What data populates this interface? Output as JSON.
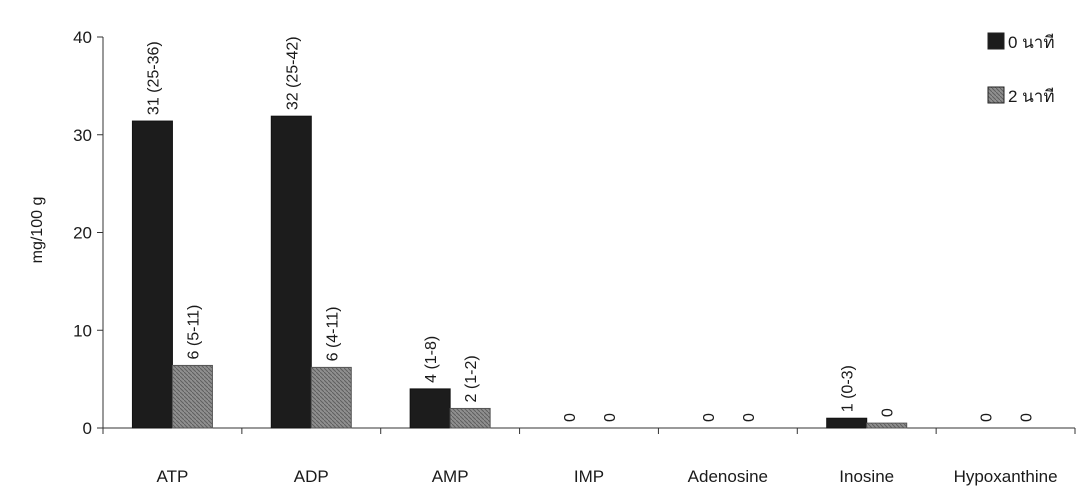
{
  "chart_data": {
    "type": "bar",
    "title": "",
    "xlabel": "",
    "ylabel": "mg/100 g",
    "ylim": [
      0,
      40
    ],
    "yticks": [
      0,
      10,
      20,
      30,
      40
    ],
    "grid": false,
    "legend_position": "top-right",
    "categories": [
      "ATP",
      "ADP",
      "AMP",
      "IMP",
      "Adenosine",
      "Inosine",
      "Hypoxanthine"
    ],
    "series": [
      {
        "name": "0 นาที",
        "color": "#1c1c1c",
        "values": [
          31.4,
          31.9,
          4.0,
          0,
          0,
          1.0,
          0
        ],
        "labels": [
          "31 (25-36)",
          "32 (25-42)",
          "4 (1-8)",
          "0",
          "0",
          "1 (0-3)",
          "0"
        ]
      },
      {
        "name": "2 นาที",
        "color": "#8c8c8c",
        "values": [
          6.4,
          6.2,
          2.0,
          0,
          0,
          0.5,
          0
        ],
        "labels": [
          "6 (5-11)",
          "6 (4-11)",
          "2 (1-2)",
          "0",
          "0",
          "0",
          "0"
        ]
      }
    ]
  }
}
